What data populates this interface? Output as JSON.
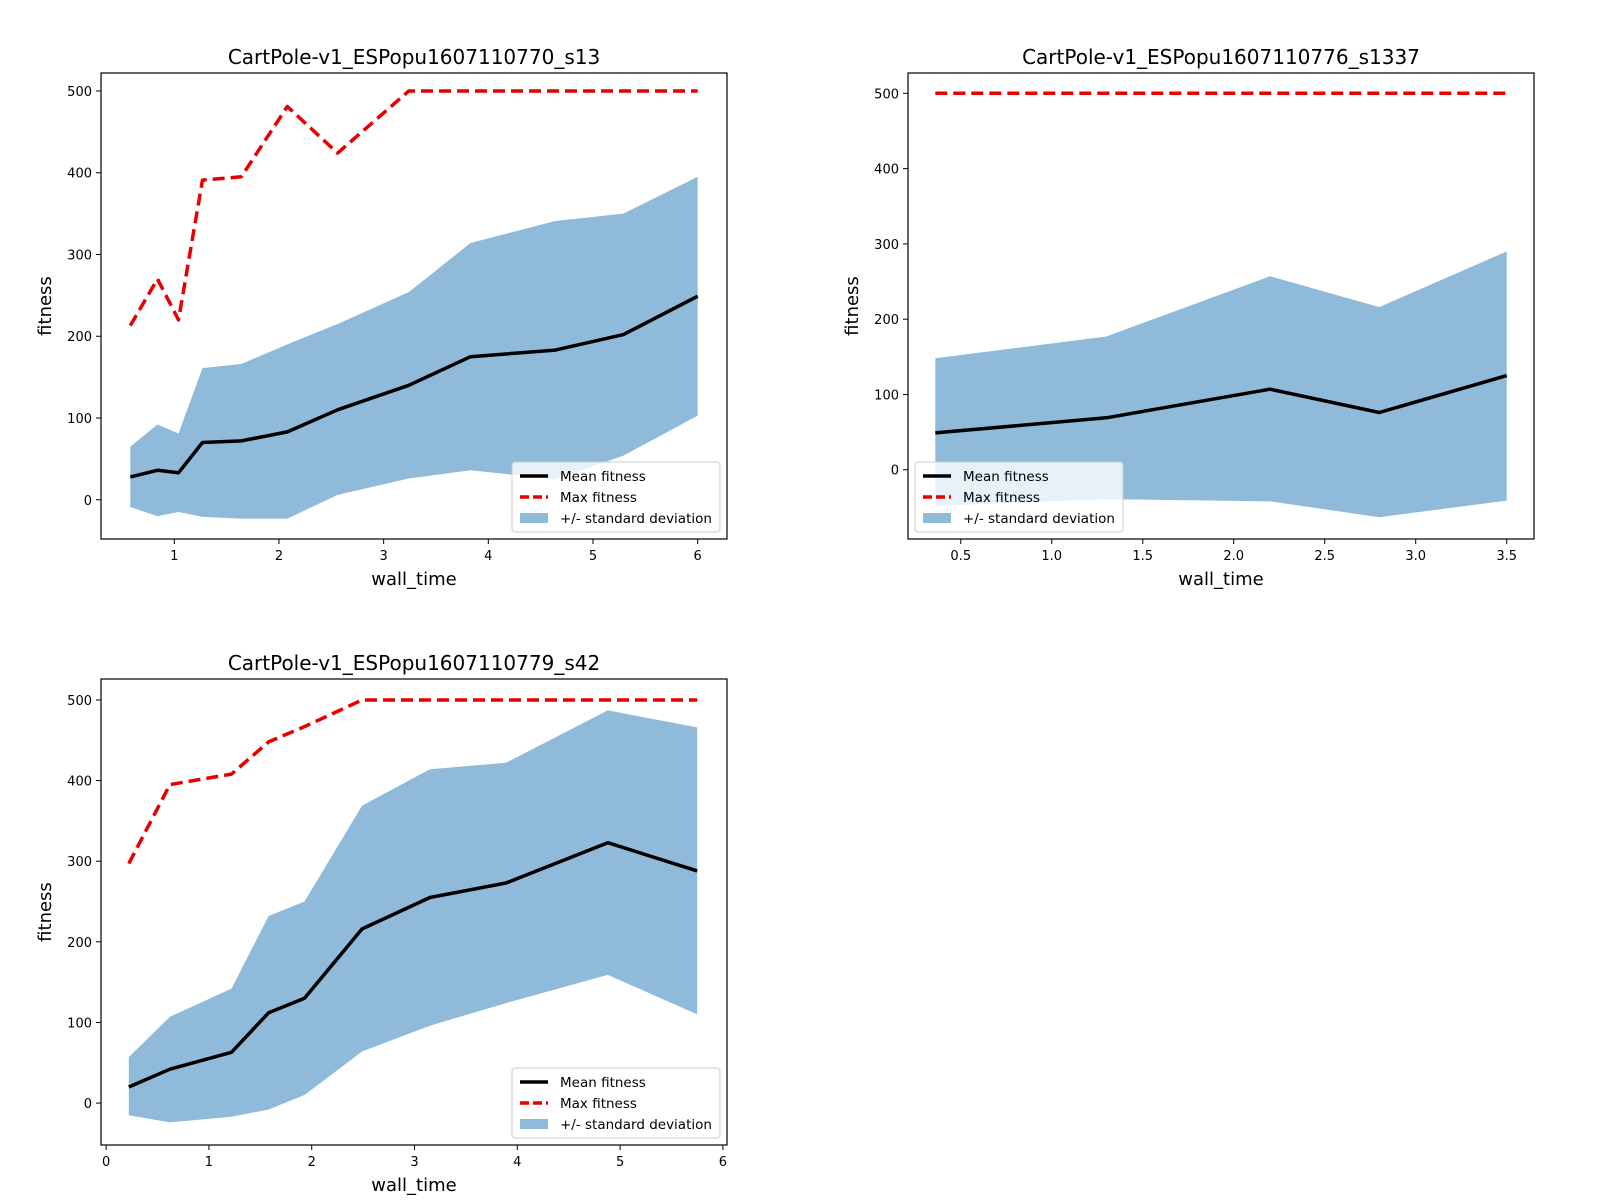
{
  "chart_data": [
    {
      "type": "line",
      "title": "CartPole-v1_ESPopu1607110770_s13",
      "xlabel": "wall_time",
      "ylabel": "fitness",
      "xlim": [
        0.3,
        6.28
      ],
      "ylim": [
        -48,
        522
      ],
      "xticks": [
        1,
        2,
        3,
        4,
        5,
        6
      ],
      "xtick_labels": [
        "1",
        "2",
        "3",
        "4",
        "5",
        "6"
      ],
      "yticks": [
        0,
        100,
        200,
        300,
        400,
        500
      ],
      "ytick_labels": [
        "0",
        "100",
        "200",
        "300",
        "400",
        "500"
      ],
      "legend_position": "bottom-right",
      "series": [
        {
          "name": "Mean fitness",
          "style": "solid",
          "color": "#000000",
          "x": [
            0.58,
            0.84,
            1.04,
            1.27,
            1.64,
            2.08,
            2.56,
            3.24,
            3.83,
            4.64,
            5.29,
            6.0
          ],
          "y": [
            28,
            36,
            33,
            70,
            72,
            83,
            110,
            140,
            175,
            183,
            202,
            249
          ]
        },
        {
          "name": "Max fitness",
          "style": "dashed",
          "color": "#e60000",
          "x": [
            0.58,
            0.84,
            1.04,
            1.27,
            1.64,
            2.08,
            2.56,
            3.24,
            3.83,
            4.64,
            5.29,
            6.0
          ],
          "y": [
            213,
            270,
            220,
            391,
            395,
            481,
            424,
            500,
            500,
            500,
            500,
            500
          ]
        },
        {
          "name": "+/- standard deviation",
          "style": "band",
          "color": "#8fbad9",
          "x": [
            0.58,
            0.84,
            1.04,
            1.27,
            1.64,
            2.08,
            2.56,
            3.24,
            3.83,
            4.64,
            5.29,
            6.0
          ],
          "upper": [
            65,
            92,
            81,
            161,
            166,
            190,
            215,
            254,
            314,
            341,
            350,
            395
          ],
          "lower": [
            -9,
            -20,
            -15,
            -21,
            -23,
            -23,
            6,
            26,
            36,
            25,
            54,
            103
          ]
        }
      ]
    },
    {
      "type": "line",
      "title": "CartPole-v1_ESPopu1607110776_s1337",
      "xlabel": "wall_time",
      "ylabel": "fitness",
      "xlim": [
        0.21,
        3.65
      ],
      "ylim": [
        -92,
        527
      ],
      "xticks": [
        0.5,
        1.0,
        1.5,
        2.0,
        2.5,
        3.0,
        3.5
      ],
      "xtick_labels": [
        "0.5",
        "1.0",
        "1.5",
        "2.0",
        "2.5",
        "3.0",
        "3.5"
      ],
      "yticks": [
        0,
        100,
        200,
        300,
        400,
        500
      ],
      "ytick_labels": [
        "0",
        "100",
        "200",
        "300",
        "400",
        "500"
      ],
      "legend_position": "bottom-left",
      "series": [
        {
          "name": "Mean fitness",
          "style": "solid",
          "color": "#000000",
          "x": [
            0.36,
            1.3,
            2.2,
            2.8,
            3.5
          ],
          "y": [
            49,
            69,
            107,
            76,
            125
          ]
        },
        {
          "name": "Max fitness",
          "style": "dashed",
          "color": "#e60000",
          "x": [
            0.36,
            1.3,
            2.2,
            2.8,
            3.5
          ],
          "y": [
            500,
            500,
            500,
            500,
            500
          ]
        },
        {
          "name": "+/- standard deviation",
          "style": "band",
          "color": "#8fbad9",
          "x": [
            0.36,
            1.3,
            2.2,
            2.8,
            3.5
          ],
          "upper": [
            148,
            177,
            257,
            216,
            290
          ],
          "lower": [
            -48,
            -39,
            -42,
            -63,
            -41
          ]
        }
      ]
    },
    {
      "type": "line",
      "title": "CartPole-v1_ESPopu1607110779_s42",
      "xlabel": "wall_time",
      "ylabel": "fitness",
      "xlim": [
        -0.05,
        6.04
      ],
      "ylim": [
        -52,
        526
      ],
      "xticks": [
        0,
        1,
        2,
        3,
        4,
        5,
        6
      ],
      "xtick_labels": [
        "0",
        "1",
        "2",
        "3",
        "4",
        "5",
        "6"
      ],
      "yticks": [
        0,
        100,
        200,
        300,
        400,
        500
      ],
      "ytick_labels": [
        "0",
        "100",
        "200",
        "300",
        "400",
        "500"
      ],
      "legend_position": "bottom-right",
      "series": [
        {
          "name": "Mean fitness",
          "style": "solid",
          "color": "#000000",
          "x": [
            0.22,
            0.62,
            1.22,
            1.58,
            1.93,
            2.49,
            3.15,
            3.89,
            4.88,
            5.75
          ],
          "y": [
            20,
            42,
            63,
            112,
            130,
            216,
            255,
            273,
            323,
            288
          ]
        },
        {
          "name": "Max fitness",
          "style": "dashed",
          "color": "#e60000",
          "x": [
            0.22,
            0.62,
            1.22,
            1.58,
            1.93,
            2.49,
            3.15,
            3.89,
            4.88,
            5.75
          ],
          "y": [
            297,
            395,
            408,
            448,
            467,
            500,
            500,
            500,
            500,
            500
          ]
        },
        {
          "name": "+/- standard deviation",
          "style": "band",
          "color": "#8fbad9",
          "x": [
            0.22,
            0.62,
            1.22,
            1.58,
            1.93,
            2.49,
            3.15,
            3.89,
            4.88,
            5.75
          ],
          "upper": [
            57,
            107,
            142,
            232,
            250,
            369,
            414,
            422,
            487,
            466
          ],
          "lower": [
            -15,
            -24,
            -17,
            -8,
            10,
            64,
            96,
            124,
            159,
            110
          ]
        }
      ]
    }
  ]
}
